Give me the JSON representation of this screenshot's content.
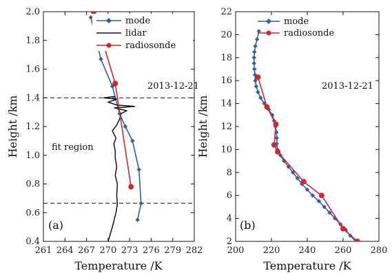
{
  "chart_data": [
    {
      "type": "line",
      "panel_label": "(a)",
      "xlabel": "Temperature /K",
      "ylabel": "Height /km",
      "xlim": [
        261,
        282
      ],
      "ylim": [
        0.4,
        2.0
      ],
      "xticks": [
        "261",
        "264",
        "267",
        "270",
        "273",
        "276",
        "279",
        "282"
      ],
      "yticks": [
        "0.4",
        "0.6",
        "0.8",
        "1.0",
        "1.2",
        "1.4",
        "1.6",
        "1.8",
        "2.0"
      ],
      "annotations": {
        "date": "2013-12-21",
        "fit_region": "fit region"
      },
      "hlines": [
        1.4,
        0.665
      ],
      "legend_position": "top-right",
      "series": [
        {
          "name": "mode",
          "color": "#2f5fa7",
          "marker": "diamond",
          "points": [
            [
              267.6,
              1.96
            ],
            [
              269.0,
              1.67
            ],
            [
              270.6,
              1.48
            ],
            [
              271.6,
              1.29
            ],
            [
              272.4,
              1.2
            ],
            [
              273.4,
              1.1
            ],
            [
              274.3,
              0.9
            ],
            [
              274.6,
              0.665
            ],
            [
              274.1,
              0.55
            ]
          ]
        },
        {
          "name": "lidar",
          "color": "#111111",
          "marker": "none",
          "points": [
            [
              270.0,
              0.4
            ],
            [
              270.6,
              0.5
            ],
            [
              271.1,
              0.6
            ],
            [
              271.3,
              0.66
            ],
            [
              271.2,
              0.72
            ],
            [
              271.3,
              0.8
            ],
            [
              271.0,
              0.86
            ],
            [
              271.2,
              0.92
            ],
            [
              271.0,
              0.98
            ],
            [
              271.0,
              1.03
            ],
            [
              270.8,
              1.08
            ],
            [
              271.1,
              1.12
            ],
            [
              270.6,
              1.17
            ],
            [
              271.2,
              1.21
            ],
            [
              271.6,
              1.25
            ],
            [
              271.8,
              1.29
            ],
            [
              272.6,
              1.31
            ],
            [
              270.9,
              1.33
            ],
            [
              273.7,
              1.34
            ],
            [
              271.2,
              1.35
            ],
            [
              270.0,
              1.37
            ],
            [
              271.2,
              1.39
            ],
            [
              269.4,
              1.4
            ],
            [
              271.0,
              1.41
            ]
          ]
        },
        {
          "name": "radiosonde",
          "color": "#d4262c",
          "marker": "circle",
          "points": [
            [
              268.0,
              2.0
            ],
            [
              271.0,
              1.5
            ],
            [
              273.2,
              0.78
            ]
          ]
        }
      ]
    },
    {
      "type": "line",
      "panel_label": "(b)",
      "xlabel": "Temperature /K",
      "ylabel": "Height /km",
      "xlim": [
        200,
        280
      ],
      "ylim": [
        2,
        22
      ],
      "xticks": [
        "200",
        "220",
        "240",
        "260",
        "280"
      ],
      "yticks": [
        "2",
        "4",
        "6",
        "8",
        "10",
        "12",
        "14",
        "16",
        "18",
        "20",
        "22"
      ],
      "annotations": {
        "date": "2013-12-21"
      },
      "legend_position": "top-left",
      "series": [
        {
          "name": "mode",
          "color": "#2f5fa7",
          "marker": "diamond",
          "points": [
            [
              213.0,
              20.3
            ],
            [
              212.0,
              19.6
            ],
            [
              211.0,
              19.0
            ],
            [
              210.5,
              18.5
            ],
            [
              210.3,
              18.0
            ],
            [
              210.3,
              17.5
            ],
            [
              210.5,
              17.0
            ],
            [
              210.8,
              16.5
            ],
            [
              211.0,
              16.0
            ],
            [
              211.5,
              15.5
            ],
            [
              212.5,
              15.0
            ],
            [
              214.0,
              14.5
            ],
            [
              216.0,
              14.0
            ],
            [
              218.5,
              13.5
            ],
            [
              220.5,
              13.0
            ],
            [
              221.5,
              12.5
            ],
            [
              222.3,
              12.0
            ],
            [
              222.8,
              11.5
            ],
            [
              223.0,
              11.0
            ],
            [
              223.0,
              10.5
            ],
            [
              223.3,
              10.0
            ],
            [
              225.0,
              9.5
            ],
            [
              227.0,
              9.0
            ],
            [
              229.5,
              8.5
            ],
            [
              232.0,
              8.0
            ],
            [
              234.5,
              7.5
            ],
            [
              237.0,
              7.0
            ],
            [
              240.0,
              6.5
            ],
            [
              243.0,
              6.0
            ],
            [
              246.5,
              5.5
            ],
            [
              249.5,
              5.0
            ],
            [
              252.5,
              4.5
            ],
            [
              255.5,
              4.0
            ],
            [
              258.5,
              3.5
            ],
            [
              261.5,
              3.0
            ],
            [
              264.0,
              2.5
            ],
            [
              267.0,
              2.0
            ]
          ]
        },
        {
          "name": "radiosonde",
          "color": "#d4262c",
          "marker": "circle",
          "points": [
            [
              212.5,
              16.3
            ],
            [
              217.5,
              13.7
            ],
            [
              222.5,
              12.2
            ],
            [
              221.5,
              10.4
            ],
            [
              223.5,
              9.8
            ],
            [
              238.0,
              7.2
            ],
            [
              248.0,
              6.0
            ],
            [
              260.0,
              3.1
            ],
            [
              268.0,
              2.0
            ]
          ]
        }
      ]
    }
  ]
}
